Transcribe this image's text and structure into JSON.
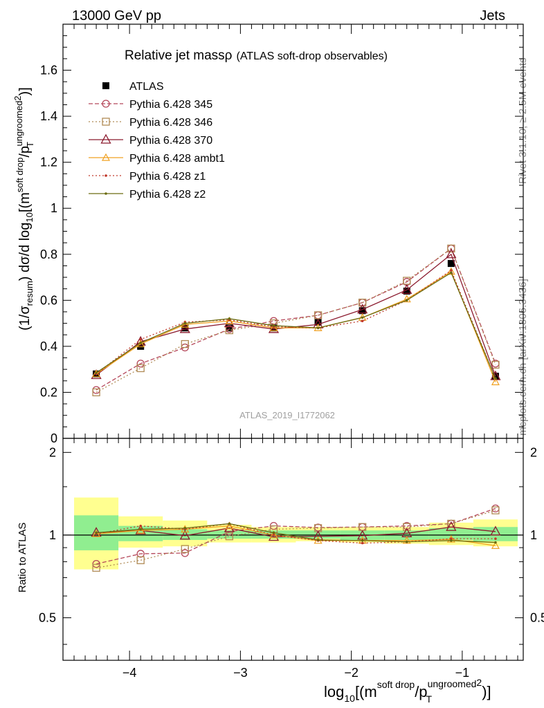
{
  "header": {
    "left": "13000 GeV pp",
    "right": "Jets"
  },
  "side_labels": {
    "rivet": "Rivet 3.1.10, ≥ 2.5M events",
    "mcplots": "mcplots.cern.ch [arXiv:1306.3436]"
  },
  "colors": {
    "ATLAS": "#000000",
    "p345": "#b5475a",
    "p346": "#b08a55",
    "p370": "#8b1a2e",
    "ambt1": "#f0a020",
    "z1": "#c0392b",
    "z2": "#6b6b10",
    "band_inner": "#90ee90",
    "band_outer": "#ffff90"
  },
  "chart_data": [
    {
      "type": "line",
      "title": "Relative jet mass",
      "title_symbol": "ρ",
      "subtitle": "(ATLAS soft-drop observables)",
      "ylabel": "(1/σ_resum) dσ/d log10[(m^soft drop/p_T^ungroomed)^2]",
      "watermark": "ATLAS_2019_I1772062",
      "xlim": [
        -4.6,
        -0.45
      ],
      "ylim": [
        0,
        1.8
      ],
      "yticks": [
        0,
        0.2,
        0.4,
        0.6,
        0.8,
        1,
        1.2,
        1.4,
        1.6
      ],
      "ytick_labels": [
        "0",
        "0.2",
        "0.4",
        "0.6",
        "0.8",
        "1",
        "1.2",
        "1.4",
        "1.6"
      ],
      "grid": false,
      "legend_position": "top-left",
      "x": [
        -4.3,
        -3.9,
        -3.5,
        -3.1,
        -2.7,
        -2.3,
        -1.9,
        -1.5,
        -1.1,
        -0.7
      ],
      "series": [
        {
          "name": "ATLAS",
          "key": "ATLAS",
          "style": "data",
          "values": [
            0.28,
            0.4,
            0.48,
            0.48,
            0.48,
            0.505,
            0.555,
            0.64,
            0.76,
            0.27
          ]
        },
        {
          "name": "Pythia 6.428 345",
          "key": "p345",
          "style": "circle-dashed",
          "values": [
            0.21,
            0.325,
            0.395,
            0.475,
            0.51,
            0.535,
            0.59,
            0.68,
            0.825,
            0.325
          ]
        },
        {
          "name": "Pythia 6.428 346",
          "key": "p346",
          "style": "square-dotted",
          "values": [
            0.2,
            0.305,
            0.41,
            0.47,
            0.5,
            0.535,
            0.59,
            0.685,
            0.825,
            0.32
          ]
        },
        {
          "name": "Pythia 6.428 370",
          "key": "p370",
          "style": "triangle-solid",
          "values": [
            0.275,
            0.42,
            0.475,
            0.5,
            0.475,
            0.495,
            0.56,
            0.645,
            0.8,
            0.27
          ]
        },
        {
          "name": "Pythia 6.428 ambt1",
          "key": "ambt1",
          "style": "triangle-small-solid",
          "values": [
            0.28,
            0.41,
            0.495,
            0.51,
            0.48,
            0.48,
            0.525,
            0.605,
            0.725,
            0.245
          ]
        },
        {
          "name": "Pythia 6.428 z1",
          "key": "z1",
          "style": "dot-dotted",
          "values": [
            0.28,
            0.43,
            0.505,
            0.515,
            0.485,
            0.48,
            0.51,
            0.6,
            0.73,
            0.26
          ]
        },
        {
          "name": "Pythia 6.428 z2",
          "key": "z2",
          "style": "dot-solid",
          "values": [
            0.285,
            0.415,
            0.5,
            0.52,
            0.49,
            0.48,
            0.525,
            0.6,
            0.72,
            0.26
          ]
        }
      ]
    },
    {
      "type": "line",
      "xlabel": "log10[(m^soft drop/p_T^ungroomed)^2]",
      "ylabel": "Ratio to ATLAS",
      "xlim": [
        -4.6,
        -0.45
      ],
      "ylim": [
        0.35,
        2.25
      ],
      "yscale": "log",
      "xticks": [
        -4,
        -3,
        -2,
        -1
      ],
      "xtick_labels": [
        "−4",
        "−3",
        "−2",
        "−1"
      ],
      "yticks": [
        0.5,
        1,
        2
      ],
      "ytick_labels": [
        "0.5",
        "1",
        "2"
      ],
      "bins": [
        [
          -4.5,
          -4.1
        ],
        [
          -4.1,
          -3.7
        ],
        [
          -3.7,
          -3.3
        ],
        [
          -3.3,
          -2.9
        ],
        [
          -2.9,
          -2.5
        ],
        [
          -2.5,
          -2.1
        ],
        [
          -2.1,
          -1.7
        ],
        [
          -1.7,
          -1.3
        ],
        [
          -1.3,
          -0.9
        ],
        [
          -0.9,
          -0.5
        ]
      ],
      "band_inner": [
        [
          0.88,
          1.18
        ],
        [
          0.95,
          1.08
        ],
        [
          0.96,
          1.05
        ],
        [
          0.97,
          1.04
        ],
        [
          0.97,
          1.04
        ],
        [
          0.97,
          1.04
        ],
        [
          0.96,
          1.04
        ],
        [
          0.96,
          1.04
        ],
        [
          0.96,
          1.06
        ],
        [
          0.95,
          1.07
        ]
      ],
      "band_outer": [
        [
          0.75,
          1.37
        ],
        [
          0.9,
          1.17
        ],
        [
          0.91,
          1.13
        ],
        [
          0.94,
          1.09
        ],
        [
          0.94,
          1.07
        ],
        [
          0.95,
          1.07
        ],
        [
          0.94,
          1.07
        ],
        [
          0.93,
          1.07
        ],
        [
          0.92,
          1.11
        ],
        [
          0.91,
          1.14
        ]
      ],
      "x": [
        -4.3,
        -3.9,
        -3.5,
        -3.1,
        -2.7,
        -2.3,
        -1.9,
        -1.5,
        -1.1,
        -0.7
      ],
      "series": [
        {
          "name": "Pythia 6.428 345",
          "key": "p345",
          "style": "circle-dashed",
          "values": [
            0.785,
            0.855,
            0.86,
            1.03,
            1.08,
            1.065,
            1.07,
            1.08,
            1.1,
            1.25
          ]
        },
        {
          "name": "Pythia 6.428 346",
          "key": "p346",
          "style": "square-dotted",
          "values": [
            0.76,
            0.81,
            0.89,
            0.99,
            1.05,
            1.06,
            1.07,
            1.07,
            1.1,
            1.23
          ]
        },
        {
          "name": "Pythia 6.428 370",
          "key": "p370",
          "style": "triangle-solid",
          "values": [
            1.02,
            1.04,
            0.995,
            1.06,
            0.985,
            0.99,
            0.995,
            1.015,
            1.07,
            1.03
          ]
        },
        {
          "name": "Pythia 6.428 ambt1",
          "key": "ambt1",
          "style": "triangle-small-solid",
          "values": [
            1.01,
            1.04,
            1.05,
            1.08,
            1.0,
            0.955,
            0.955,
            0.955,
            0.965,
            0.915
          ]
        },
        {
          "name": "Pythia 6.428 z1",
          "key": "z1",
          "style": "dot-dotted",
          "values": [
            1.01,
            1.08,
            1.05,
            1.1,
            1.0,
            0.955,
            0.935,
            0.945,
            0.97,
            0.97
          ]
        },
        {
          "name": "Pythia 6.428 z2",
          "key": "z2",
          "style": "dot-solid",
          "values": [
            1.02,
            1.05,
            1.06,
            1.1,
            1.02,
            0.96,
            0.955,
            0.945,
            0.955,
            0.94
          ]
        }
      ]
    }
  ]
}
